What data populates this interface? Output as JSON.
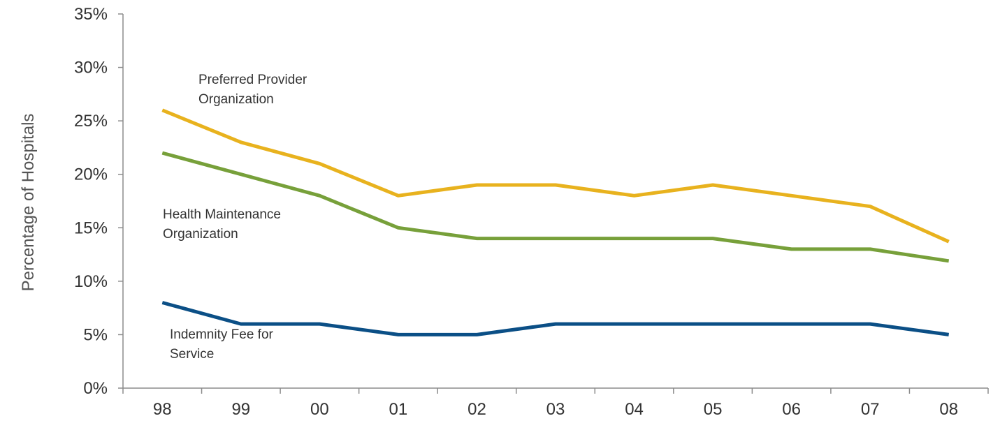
{
  "chart_data": {
    "type": "line",
    "title": "",
    "xlabel": "",
    "ylabel": "Percentage of Hospitals",
    "categories": [
      "98",
      "99",
      "00",
      "01",
      "02",
      "03",
      "04",
      "05",
      "06",
      "07",
      "08"
    ],
    "ylim": [
      0,
      35
    ],
    "yticks": [
      "0%",
      "5%",
      "10%",
      "15%",
      "20%",
      "25%",
      "30%",
      "35%"
    ],
    "grid": false,
    "legend": "none",
    "series": [
      {
        "name": "Preferred Provider Organization",
        "label_lines": [
          "Preferred Provider",
          "Organization"
        ],
        "color": "#E8B21E",
        "values": [
          26,
          23,
          21,
          18,
          19,
          19,
          18,
          19,
          18,
          17,
          13.7
        ]
      },
      {
        "name": "Health Maintenance Organization",
        "label_lines": [
          "Health Maintenance",
          "Organization"
        ],
        "color": "#77A03A",
        "values": [
          22,
          20,
          18,
          15,
          14,
          14,
          14,
          14,
          13,
          13,
          11.9
        ]
      },
      {
        "name": "Indemnity Fee for Service",
        "label_lines": [
          "Indemnity Fee for",
          "Service"
        ],
        "color": "#0B4F86",
        "values": [
          8,
          6,
          6,
          5,
          5,
          6,
          6,
          6,
          6,
          6,
          5
        ]
      }
    ]
  }
}
